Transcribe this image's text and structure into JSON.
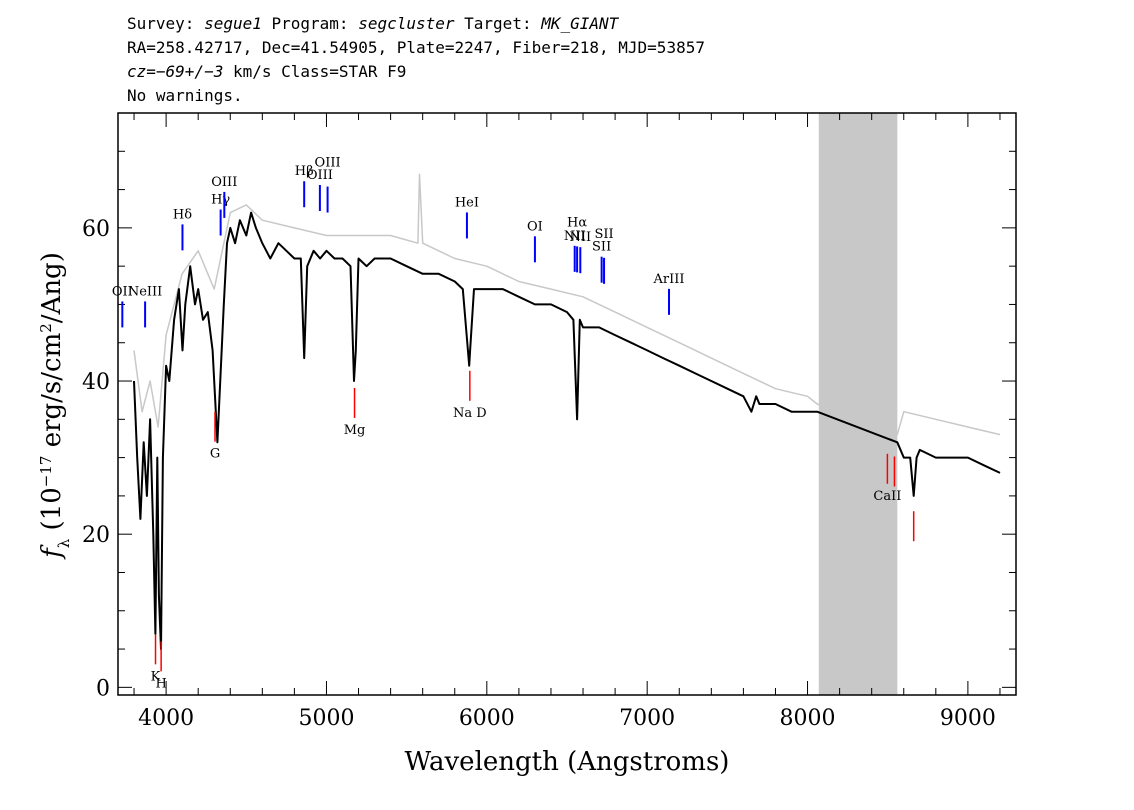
{
  "header": {
    "line1": {
      "survey_label": "Survey: ",
      "survey": "segue1",
      "program_label": " Program: ",
      "program": "segcluster",
      "target_label": " Target: ",
      "target": "MK_GIANT"
    },
    "line2": "RA=258.42717, Dec=41.54905, Plate=2247, Fiber=218, MJD=53857",
    "line3": {
      "cz": "cz=−69+/−3",
      "rest": " km/s Class=STAR F9"
    },
    "line4": "No warnings."
  },
  "chart_data": {
    "type": "line",
    "xlabel": "Wavelength (Angstroms)",
    "ylabel": "fλ (10⁻¹⁷ erg/s/cm²/Ang)",
    "xlim": [
      3700,
      9300
    ],
    "ylim": [
      -1,
      75
    ],
    "xticks": [
      4000,
      5000,
      6000,
      7000,
      8000,
      9000
    ],
    "yticks": [
      0,
      20,
      40,
      60
    ],
    "masked_region": [
      8070,
      8560
    ],
    "series": [
      {
        "color": "#000000",
        "x": [
          3800,
          3820,
          3840,
          3860,
          3880,
          3900,
          3920,
          3933,
          3945,
          3955,
          3968,
          3980,
          4000,
          4020,
          4050,
          4080,
          4102,
          4120,
          4150,
          4180,
          4200,
          4230,
          4260,
          4290,
          4320,
          4340,
          4360,
          4380,
          4400,
          4430,
          4460,
          4500,
          4530,
          4560,
          4600,
          4650,
          4700,
          4750,
          4800,
          4840,
          4861,
          4880,
          4920,
          4960,
          5000,
          5050,
          5100,
          5150,
          5172,
          5183,
          5200,
          5250,
          5300,
          5400,
          5500,
          5600,
          5700,
          5800,
          5850,
          5890,
          5896,
          5920,
          6000,
          6100,
          6200,
          6300,
          6400,
          6500,
          6540,
          6563,
          6580,
          6600,
          6700,
          6800,
          6900,
          7000,
          7100,
          7200,
          7300,
          7400,
          7500,
          7600,
          7650,
          7680,
          7700,
          7800,
          7900,
          8000,
          8060,
          8560,
          8600,
          8640,
          8662,
          8680,
          8700,
          8800,
          8900,
          9000,
          9100,
          9200
        ],
        "y": [
          40,
          30,
          22,
          32,
          25,
          35,
          20,
          7,
          30,
          12,
          5,
          30,
          42,
          40,
          48,
          52,
          44,
          50,
          55,
          50,
          52,
          48,
          49,
          44,
          32,
          41,
          50,
          58,
          60,
          58,
          61,
          59,
          62,
          60,
          58,
          56,
          58,
          57,
          56,
          56,
          43,
          55,
          57,
          56,
          57,
          56,
          56,
          55,
          40,
          44,
          56,
          55,
          56,
          56,
          55,
          54,
          54,
          53,
          52,
          42,
          44,
          52,
          52,
          52,
          51,
          50,
          50,
          49,
          48,
          35,
          48,
          47,
          47,
          46,
          45,
          44,
          43,
          42,
          41,
          40,
          39,
          38,
          36,
          38,
          37,
          37,
          36,
          36,
          36,
          32,
          30,
          30,
          25,
          30,
          31,
          30,
          30,
          30,
          29,
          28
        ]
      },
      {
        "color": "#c8c8c8",
        "x": [
          3800,
          3850,
          3900,
          3950,
          4000,
          4100,
          4200,
          4300,
          4400,
          4500,
          4600,
          4800,
          5000,
          5200,
          5400,
          5570,
          5580,
          5600,
          5800,
          6000,
          6200,
          6400,
          6600,
          6800,
          7000,
          7200,
          7400,
          7600,
          7800,
          8000,
          8060,
          8560,
          8600,
          8800,
          9000,
          9200
        ],
        "y": [
          44,
          36,
          40,
          34,
          46,
          54,
          57,
          52,
          62,
          63,
          61,
          60,
          59,
          59,
          59,
          58,
          67,
          58,
          56,
          55,
          53,
          52,
          51,
          49,
          47,
          45,
          43,
          41,
          39,
          38,
          37,
          33,
          36,
          35,
          34,
          33
        ]
      }
    ],
    "emission_lines": [
      {
        "label": "OII",
        "x": 3727
      },
      {
        "label": "NeIII",
        "x": 3869
      },
      {
        "label": "Hδ",
        "x": 4102
      },
      {
        "label": "Hγ",
        "x": 4340
      },
      {
        "label": "OIII",
        "x": 4363
      },
      {
        "label": "Hβ",
        "x": 4861
      },
      {
        "label": "OIII",
        "x": 4959
      },
      {
        "label": "OIII",
        "x": 5007
      },
      {
        "label": "HeI",
        "x": 5876
      },
      {
        "label": "OI",
        "x": 6300
      },
      {
        "label": "NII",
        "x": 6548
      },
      {
        "label": "Hα",
        "x": 6563
      },
      {
        "label": "NII",
        "x": 6583
      },
      {
        "label": "SII",
        "x": 6716
      },
      {
        "label": "SII",
        "x": 6731
      },
      {
        "label": "ArIII",
        "x": 7136
      }
    ],
    "absorption_lines": [
      {
        "label": "K",
        "x": 3934
      },
      {
        "label": "H",
        "x": 3969
      },
      {
        "label": "G",
        "x": 4305
      },
      {
        "label": "Mg",
        "x": 5175
      },
      {
        "label": "Na D",
        "x": 5894
      },
      {
        "label": "CaII",
        "x": 8498
      },
      {
        "label": "CaII",
        "x": 8542
      },
      {
        "label": "CaII",
        "x": 8662
      }
    ],
    "emission_color": "#0000ff",
    "absorption_color": "#ff0000",
    "mask_color": "#c8c8c8"
  }
}
